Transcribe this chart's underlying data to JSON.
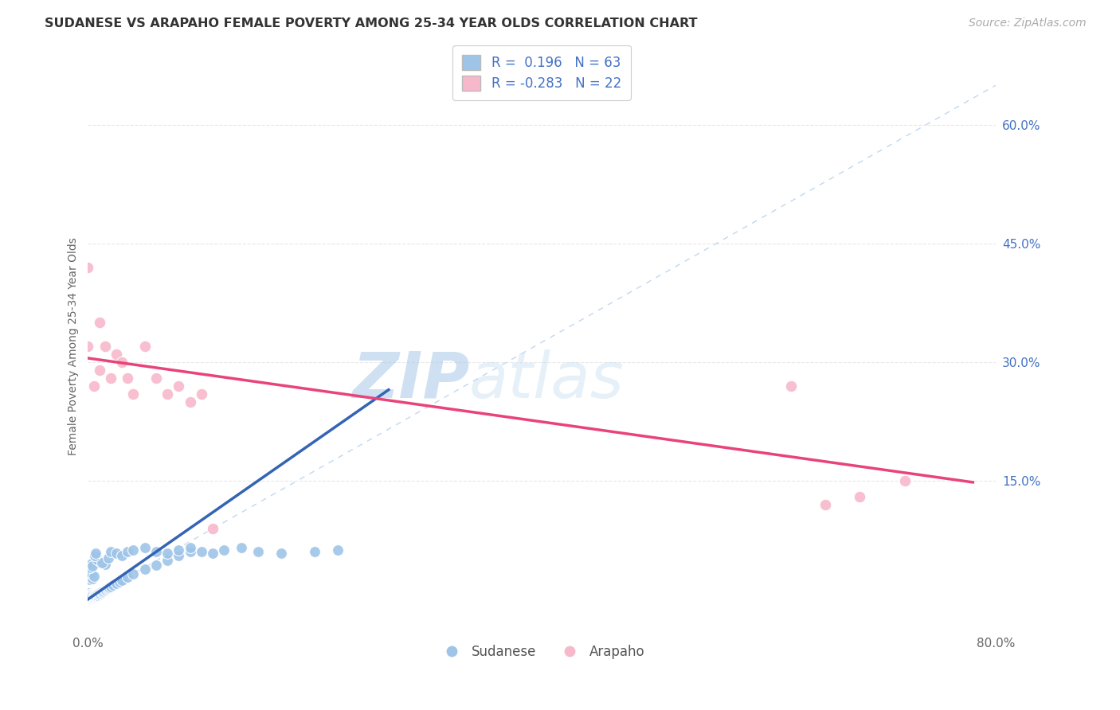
{
  "title": "SUDANESE VS ARAPAHO FEMALE POVERTY AMONG 25-34 YEAR OLDS CORRELATION CHART",
  "source": "Source: ZipAtlas.com",
  "ylabel": "Female Poverty Among 25-34 Year Olds",
  "xlim": [
    0.0,
    0.8
  ],
  "ylim": [
    -0.04,
    0.68
  ],
  "ytick_positions": [
    0.15,
    0.3,
    0.45,
    0.6
  ],
  "ytick_labels": [
    "15.0%",
    "30.0%",
    "45.0%",
    "60.0%"
  ],
  "legend_R_sudanese": " 0.196",
  "legend_N_sudanese": "63",
  "legend_R_arapaho": "-0.283",
  "legend_N_arapaho": "22",
  "sudanese_color": "#9ec4e8",
  "arapaho_color": "#f7b8cb",
  "sudanese_line_color": "#3464b4",
  "arapaho_line_color": "#e8437a",
  "diagonal_color": "#c0d8f0",
  "watermark_zip": "ZIP",
  "watermark_atlas": "atlas",
  "bg_color": "#ffffff",
  "grid_color": "#e8e8e8",
  "sud_x": [
    0.0,
    0.0,
    0.0,
    0.0,
    0.0,
    0.0,
    0.0,
    0.0,
    0.0,
    0.0,
    0.0,
    0.0,
    0.001,
    0.001,
    0.001,
    0.001,
    0.001,
    0.002,
    0.002,
    0.002,
    0.002,
    0.003,
    0.003,
    0.003,
    0.003,
    0.004,
    0.004,
    0.004,
    0.005,
    0.005,
    0.005,
    0.006,
    0.006,
    0.007,
    0.007,
    0.008,
    0.008,
    0.009,
    0.009,
    0.01,
    0.01,
    0.011,
    0.012,
    0.012,
    0.013,
    0.014,
    0.015,
    0.016,
    0.017,
    0.018,
    0.019,
    0.02,
    0.022,
    0.025,
    0.028,
    0.03,
    0.035,
    0.04,
    0.05,
    0.06,
    0.07,
    0.08,
    0.09
  ],
  "sud_y": [
    0.0,
    0.0,
    0.001,
    0.001,
    0.002,
    0.002,
    0.003,
    0.004,
    0.005,
    0.006,
    0.007,
    0.008,
    0.002,
    0.003,
    0.004,
    0.005,
    0.006,
    0.002,
    0.003,
    0.004,
    0.005,
    0.002,
    0.003,
    0.004,
    0.005,
    0.003,
    0.004,
    0.005,
    0.003,
    0.004,
    0.005,
    0.004,
    0.005,
    0.004,
    0.005,
    0.005,
    0.006,
    0.005,
    0.007,
    0.006,
    0.008,
    0.007,
    0.008,
    0.01,
    0.009,
    0.01,
    0.011,
    0.012,
    0.013,
    0.014,
    0.015,
    0.016,
    0.018,
    0.02,
    0.022,
    0.024,
    0.028,
    0.032,
    0.038,
    0.043,
    0.049,
    0.055,
    0.06
  ],
  "sud_extra_x": [
    0.001,
    0.002,
    0.001,
    0.003,
    0.002,
    0.004,
    0.003,
    0.005,
    0.002,
    0.003,
    0.004,
    0.01,
    0.015,
    0.008,
    0.012,
    0.018,
    0.006,
    0.007,
    0.02,
    0.025,
    0.03,
    0.035,
    0.04,
    0.05,
    0.06,
    0.07,
    0.08,
    0.09,
    0.1,
    0.11,
    0.12,
    0.135,
    0.15,
    0.17,
    0.2,
    0.22
  ],
  "sud_extra_y": [
    0.025,
    0.03,
    0.035,
    0.028,
    0.033,
    0.026,
    0.032,
    0.029,
    0.04,
    0.045,
    0.042,
    0.048,
    0.044,
    0.05,
    0.046,
    0.052,
    0.055,
    0.058,
    0.06,
    0.058,
    0.055,
    0.06,
    0.062,
    0.065,
    0.06,
    0.058,
    0.062,
    0.065,
    0.06,
    0.058,
    0.062,
    0.065,
    0.06,
    0.058,
    0.06,
    0.062
  ],
  "ara_x": [
    0.0,
    0.0,
    0.005,
    0.01,
    0.01,
    0.015,
    0.02,
    0.025,
    0.03,
    0.035,
    0.04,
    0.05,
    0.06,
    0.07,
    0.08,
    0.09,
    0.1,
    0.11,
    0.62,
    0.65,
    0.68,
    0.72
  ],
  "ara_y": [
    0.42,
    0.32,
    0.27,
    0.35,
    0.29,
    0.32,
    0.28,
    0.31,
    0.3,
    0.28,
    0.26,
    0.32,
    0.28,
    0.26,
    0.27,
    0.25,
    0.26,
    0.09,
    0.27,
    0.12,
    0.13,
    0.15
  ],
  "sud_trend_x0": 0.0,
  "sud_trend_x1": 0.265,
  "sud_trend_y0": 0.0,
  "sud_trend_y1": 0.265,
  "ara_trend_x0": 0.0,
  "ara_trend_x1": 0.78,
  "ara_trend_y0": 0.305,
  "ara_trend_y1": 0.148
}
